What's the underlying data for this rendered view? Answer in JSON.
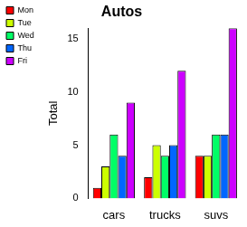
{
  "chart_data": {
    "type": "bar",
    "title": "Autos",
    "y_label": "Total",
    "categories": [
      "cars",
      "trucks",
      "suvs"
    ],
    "series": [
      {
        "name": "Mon",
        "color": "#ff0000",
        "values": [
          1,
          2,
          4
        ]
      },
      {
        "name": "Tue",
        "color": "#ccff00",
        "values": [
          3,
          5,
          4
        ]
      },
      {
        "name": "Wed",
        "color": "#00ff66",
        "values": [
          6,
          4,
          6
        ]
      },
      {
        "name": "Thu",
        "color": "#0066ff",
        "values": [
          4,
          5,
          6
        ]
      },
      {
        "name": "Fri",
        "color": "#cc00ff",
        "values": [
          9,
          12,
          16
        ]
      }
    ],
    "ylim": [
      0,
      16
    ],
    "yticks": [
      0,
      5,
      10,
      15
    ],
    "grid": false,
    "legend": "upper left"
  }
}
